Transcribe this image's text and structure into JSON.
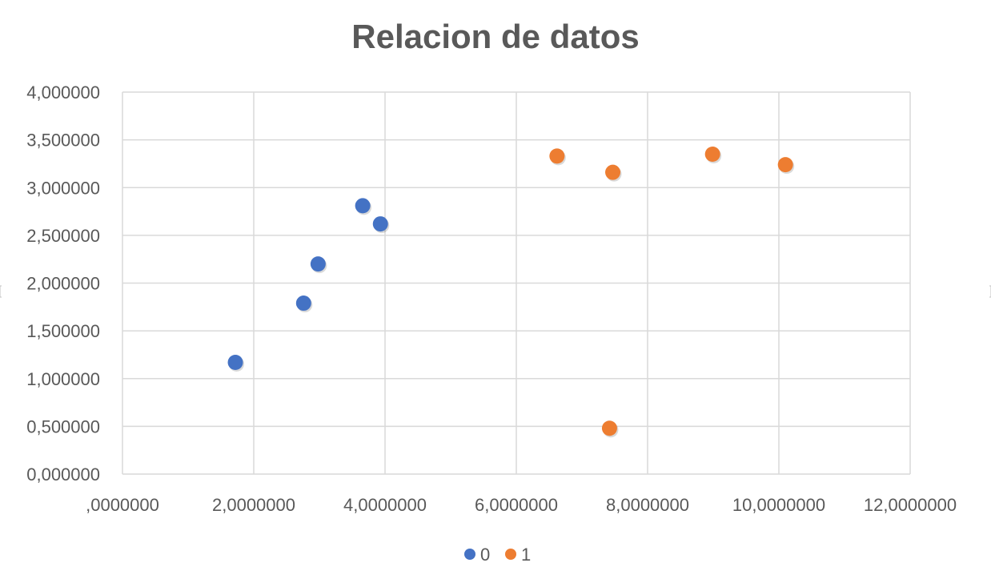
{
  "chart_data": {
    "type": "scatter",
    "title": "Relacion de datos",
    "xlabel": "",
    "ylabel": "",
    "xlim": [
      0,
      12
    ],
    "ylim": [
      0,
      4
    ],
    "grid": true,
    "legend_position": "bottom",
    "x_ticks": [
      {
        "value": 0,
        "label": ",0000000"
      },
      {
        "value": 2,
        "label": "2,0000000"
      },
      {
        "value": 4,
        "label": "4,0000000"
      },
      {
        "value": 6,
        "label": "6,0000000"
      },
      {
        "value": 8,
        "label": "8,0000000"
      },
      {
        "value": 10,
        "label": "10,0000000"
      },
      {
        "value": 12,
        "label": "12,0000000"
      }
    ],
    "y_ticks": [
      {
        "value": 0,
        "label": "0,000000"
      },
      {
        "value": 0.5,
        "label": "0,500000"
      },
      {
        "value": 1,
        "label": "1,000000"
      },
      {
        "value": 1.5,
        "label": "1,500000"
      },
      {
        "value": 2,
        "label": "2,000000"
      },
      {
        "value": 2.5,
        "label": "2,500000"
      },
      {
        "value": 3,
        "label": "3,000000"
      },
      {
        "value": 3.5,
        "label": "3,500000"
      },
      {
        "value": 4,
        "label": "4,000000"
      }
    ],
    "series": [
      {
        "name": "0",
        "color": "#4472c4",
        "points": [
          {
            "x": 1.72,
            "y": 1.17
          },
          {
            "x": 2.76,
            "y": 1.79
          },
          {
            "x": 2.98,
            "y": 2.2
          },
          {
            "x": 3.66,
            "y": 2.81
          },
          {
            "x": 3.93,
            "y": 2.62
          }
        ]
      },
      {
        "name": "1",
        "color": "#ed7d31",
        "points": [
          {
            "x": 6.62,
            "y": 3.33
          },
          {
            "x": 7.47,
            "y": 3.16
          },
          {
            "x": 7.42,
            "y": 0.48
          },
          {
            "x": 8.99,
            "y": 3.35
          },
          {
            "x": 10.1,
            "y": 3.24
          }
        ]
      }
    ]
  }
}
